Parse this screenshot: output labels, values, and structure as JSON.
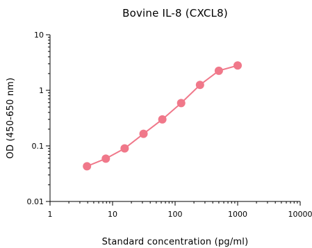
{
  "chart_data": {
    "type": "scatter",
    "title": "Bovine IL-8 (CXCL8)",
    "xlabel": "Standard concentration (pg/ml)",
    "ylabel": "OD (450-650 nm)",
    "x_scale": "log",
    "y_scale": "log",
    "xlim": [
      1,
      10000
    ],
    "ylim": [
      0.01,
      10
    ],
    "x_ticks": [
      "1",
      "10",
      "100",
      "1000",
      "10000"
    ],
    "y_ticks": [
      "0.01",
      "0.1",
      "1",
      "10"
    ],
    "grid": false,
    "series": [
      {
        "color": "#f0788a",
        "x": [
          3.9,
          7.8,
          15.6,
          31.25,
          62.5,
          125,
          250,
          500,
          1000
        ],
        "y": [
          0.043,
          0.059,
          0.09,
          0.165,
          0.3,
          0.59,
          1.25,
          2.25,
          2.8
        ]
      }
    ]
  }
}
